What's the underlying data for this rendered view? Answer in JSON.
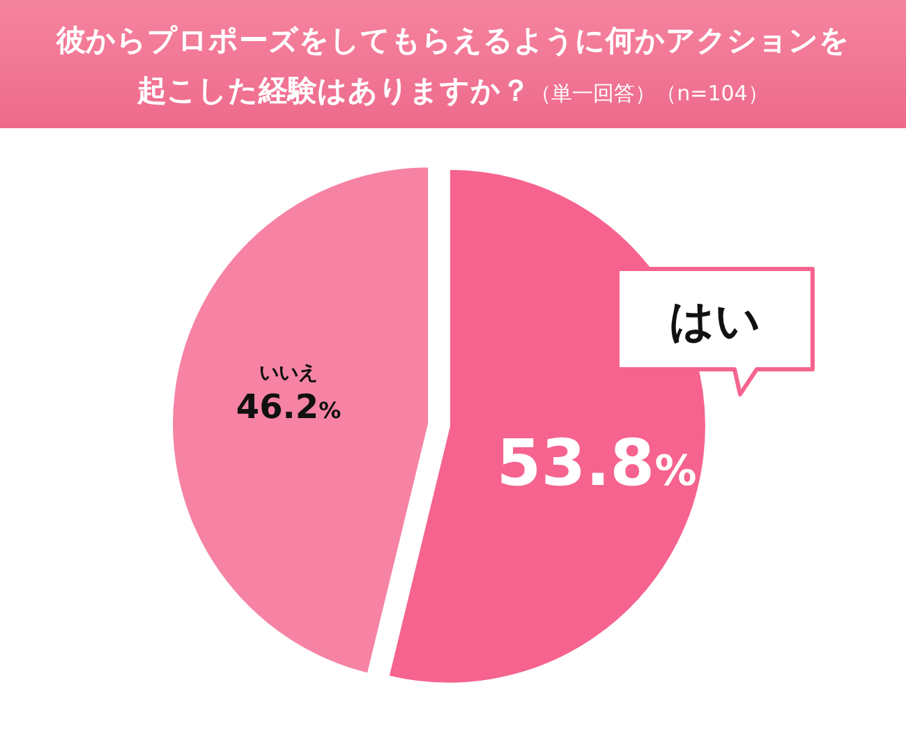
{
  "chart_data": {
    "type": "pie",
    "title": "彼からプロポーズをしてもらえるように何かアクションを起こした経験はありますか？",
    "subtitle": "（単一回答）（n=104）",
    "categories": [
      "はい",
      "いいえ"
    ],
    "values": [
      53.8,
      46.2
    ],
    "colors": [
      "#f5638e",
      "#f683a4"
    ],
    "value_labels": [
      "53.8%",
      "46.2%"
    ],
    "legend": false
  }
}
